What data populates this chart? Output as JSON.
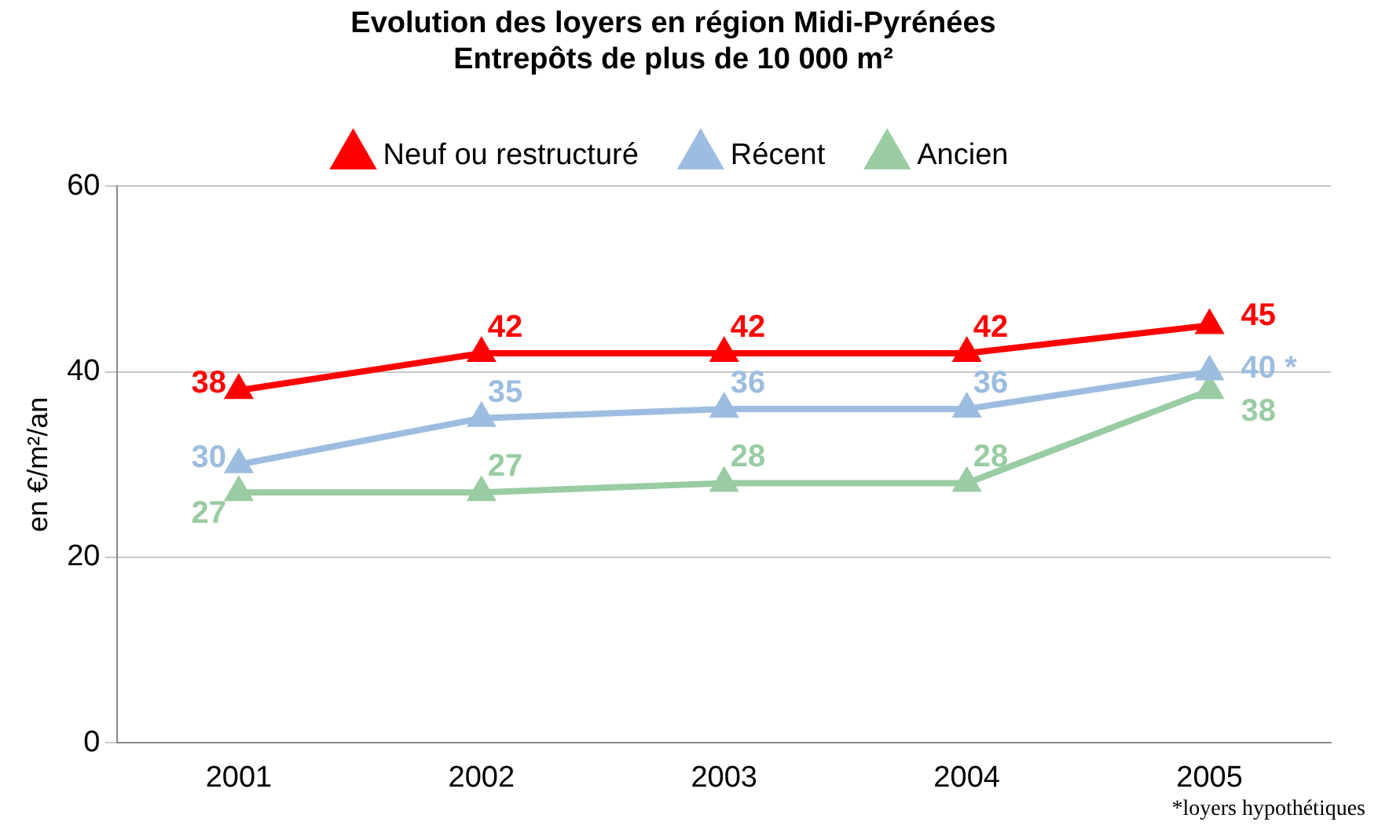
{
  "chart_data": {
    "type": "line",
    "title": "Evolution des loyers en région Midi-Pyrénées\nEntrepôts de plus de 10 000 m²",
    "ylabel": "en €/m²/an",
    "categories": [
      "2001",
      "2002",
      "2003",
      "2004",
      "2005"
    ],
    "series": [
      {
        "name": "Neuf ou restructuré",
        "color": "#ff0000",
        "values": [
          38,
          42,
          42,
          42,
          45
        ]
      },
      {
        "name": "Récent",
        "color": "#9dbde0",
        "values": [
          30,
          35,
          36,
          36,
          40
        ],
        "value_labels": [
          "30",
          "35",
          "36",
          "36",
          "40 *"
        ]
      },
      {
        "name": "Ancien",
        "color": "#99cca3",
        "values": [
          27,
          27,
          28,
          28,
          38
        ]
      }
    ],
    "ylim": [
      0,
      60
    ],
    "yticks": [
      0,
      20,
      40,
      60
    ],
    "grid": "y",
    "legend": "top",
    "marker": "triangle",
    "data_labels": true,
    "annotations": [
      "*loyers hypothétiques"
    ]
  }
}
